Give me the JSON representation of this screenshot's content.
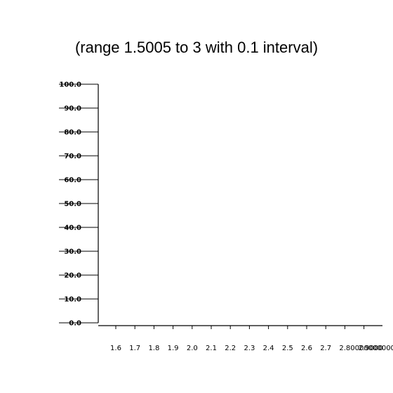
{
  "chart_data": {
    "type": "line",
    "title": "(range 1.5005 to 3 with 0.1 interval)",
    "xlabel": "",
    "ylabel": "",
    "xlim": [
      1.5005,
      3
    ],
    "ylim": [
      0,
      100
    ],
    "y_ticks": [
      {
        "value": 0,
        "label": "0.0"
      },
      {
        "value": 10,
        "label": "10.0"
      },
      {
        "value": 20,
        "label": "20.0"
      },
      {
        "value": 30,
        "label": "30.0"
      },
      {
        "value": 40,
        "label": "40.0"
      },
      {
        "value": 50,
        "label": "50.0"
      },
      {
        "value": 60,
        "label": "60.0"
      },
      {
        "value": 70,
        "label": "70.0"
      },
      {
        "value": 80,
        "label": "80.0"
      },
      {
        "value": 90,
        "label": "90.0"
      },
      {
        "value": 100,
        "label": "100.0"
      }
    ],
    "x_ticks": [
      {
        "value": 1.6,
        "label": "1.6"
      },
      {
        "value": 1.7,
        "label": "1.7"
      },
      {
        "value": 1.8,
        "label": "1.8"
      },
      {
        "value": 1.9,
        "label": "1.9"
      },
      {
        "value": 2.0,
        "label": "2.0"
      },
      {
        "value": 2.1,
        "label": "2.1"
      },
      {
        "value": 2.2,
        "label": "2.2"
      },
      {
        "value": 2.3,
        "label": "2.3"
      },
      {
        "value": 2.4,
        "label": "2.4"
      },
      {
        "value": 2.5,
        "label": "2.5"
      },
      {
        "value": 2.6,
        "label": "2.6"
      },
      {
        "value": 2.7,
        "label": "2.7"
      },
      {
        "value": 2.8,
        "label": "2.8000000000000003"
      },
      {
        "value": 2.9,
        "label": "2.9000"
      }
    ],
    "series": [],
    "grid": false,
    "legend": "none"
  }
}
